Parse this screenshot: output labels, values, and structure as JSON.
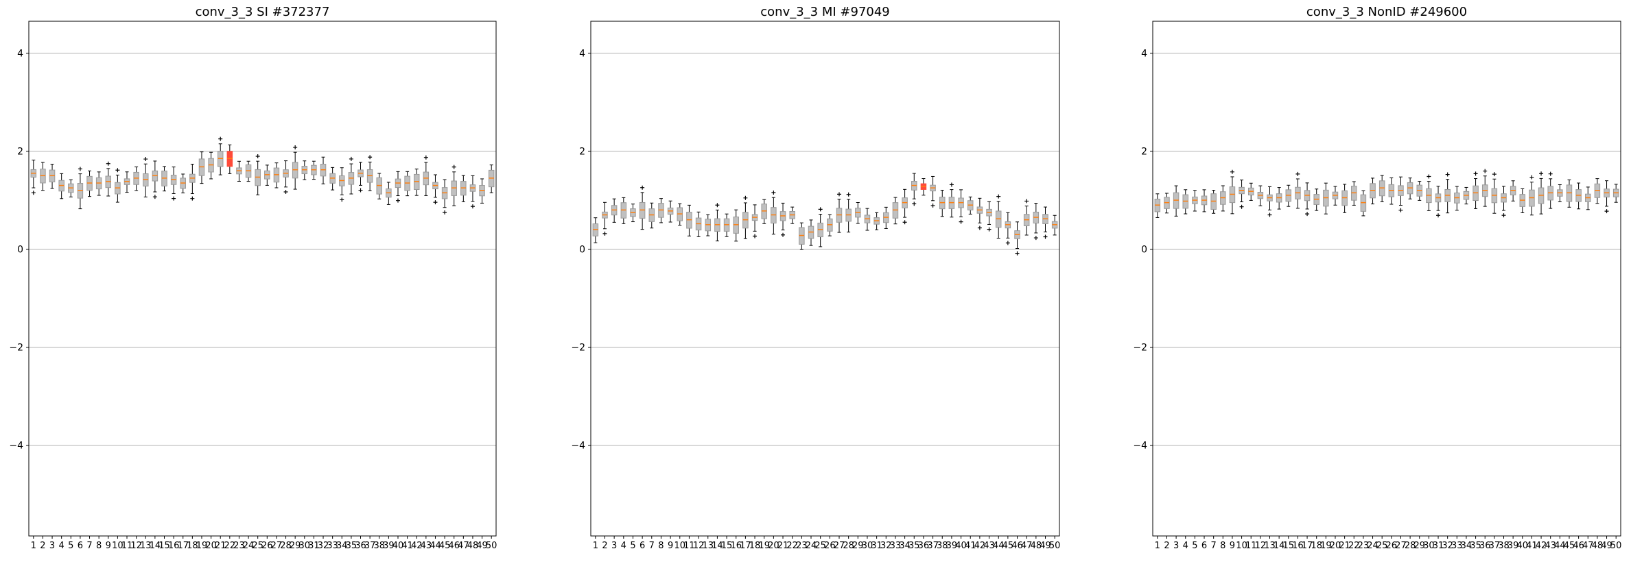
{
  "figure": {
    "colors": {
      "box_fill": "#c0c0c0",
      "box_edge": "#9a9a9a",
      "median": "#ff7f0e",
      "highlight": "#ff4a3a",
      "whisker": "#000000",
      "grid": "#b0b0b0"
    }
  },
  "chart_data": [
    {
      "type": "box",
      "title": "conv_3_3 SI #372377",
      "xlabel": "",
      "ylabel": "",
      "ylim": [
        -5.85,
        4.65
      ],
      "yticks": [
        4,
        2,
        0,
        -2,
        -4
      ],
      "ytick_labels": [
        "4",
        "2",
        "0",
        "−2",
        "−4"
      ],
      "grid": "horizontal",
      "categories": [
        "1",
        "2",
        "3",
        "4",
        "5",
        "6",
        "7",
        "8",
        "9",
        "10",
        "11",
        "12",
        "13",
        "14",
        "15",
        "16",
        "17",
        "18",
        "19",
        "20",
        "21",
        "22",
        "23",
        "24",
        "25",
        "26",
        "27",
        "28",
        "29",
        "30",
        "31",
        "32",
        "33",
        "34",
        "35",
        "36",
        "37",
        "38",
        "39",
        "40",
        "41",
        "42",
        "43",
        "44",
        "45",
        "46",
        "47",
        "48",
        "49",
        "50"
      ],
      "highlight": [
        22
      ],
      "medians": [
        1.55,
        1.5,
        1.5,
        1.3,
        1.25,
        1.2,
        1.35,
        1.35,
        1.38,
        1.25,
        1.38,
        1.45,
        1.42,
        1.5,
        1.45,
        1.42,
        1.35,
        1.45,
        1.68,
        1.72,
        1.85,
        1.85,
        1.6,
        1.6,
        1.47,
        1.52,
        1.52,
        1.55,
        1.62,
        1.62,
        1.62,
        1.62,
        1.45,
        1.4,
        1.45,
        1.55,
        1.5,
        1.3,
        1.15,
        1.35,
        1.35,
        1.38,
        1.45,
        1.3,
        1.15,
        1.25,
        1.25,
        1.25,
        1.2,
        1.45
      ]
    },
    {
      "type": "box",
      "title": "conv_3_3 MI #97049",
      "xlabel": "",
      "ylabel": "",
      "ylim": [
        -5.85,
        4.65
      ],
      "yticks": [
        4,
        2,
        0,
        -2,
        -4
      ],
      "ytick_labels": [
        "4",
        "2",
        "0",
        "−2",
        "−4"
      ],
      "grid": "horizontal",
      "categories": [
        "1",
        "2",
        "3",
        "4",
        "5",
        "6",
        "7",
        "8",
        "9",
        "10",
        "11",
        "12",
        "13",
        "14",
        "15",
        "16",
        "17",
        "18",
        "19",
        "20",
        "21",
        "22",
        "23",
        "24",
        "25",
        "26",
        "27",
        "28",
        "29",
        "30",
        "31",
        "32",
        "33",
        "34",
        "35",
        "36",
        "37",
        "38",
        "39",
        "40",
        "41",
        "42",
        "43",
        "44",
        "45",
        "46",
        "47",
        "48",
        "49",
        "50"
      ],
      "highlight": [
        36
      ],
      "medians": [
        0.4,
        0.7,
        0.8,
        0.8,
        0.75,
        0.8,
        0.7,
        0.8,
        0.78,
        0.72,
        0.6,
        0.52,
        0.5,
        0.5,
        0.5,
        0.5,
        0.6,
        0.65,
        0.78,
        0.7,
        0.68,
        0.7,
        0.28,
        0.35,
        0.4,
        0.5,
        0.7,
        0.7,
        0.75,
        0.62,
        0.58,
        0.65,
        0.8,
        0.95,
        1.3,
        1.28,
        1.25,
        0.95,
        0.95,
        0.95,
        0.9,
        0.8,
        0.75,
        0.62,
        0.5,
        0.3,
        0.6,
        0.65,
        0.62,
        0.5
      ]
    },
    {
      "type": "box",
      "title": "conv_3_3 NonID #249600",
      "xlabel": "",
      "ylabel": "",
      "ylim": [
        -5.85,
        4.65
      ],
      "yticks": [
        4,
        2,
        0,
        -2,
        -4
      ],
      "ytick_labels": [
        "4",
        "2",
        "0",
        "−2",
        "−4"
      ],
      "grid": "horizontal",
      "categories": [
        "1",
        "2",
        "3",
        "4",
        "5",
        "6",
        "7",
        "8",
        "9",
        "10",
        "11",
        "12",
        "13",
        "14",
        "15",
        "16",
        "17",
        "18",
        "19",
        "20",
        "21",
        "22",
        "23",
        "24",
        "25",
        "26",
        "27",
        "28",
        "29",
        "30",
        "31",
        "32",
        "33",
        "34",
        "35",
        "36",
        "37",
        "38",
        "39",
        "40",
        "41",
        "42",
        "43",
        "44",
        "45",
        "46",
        "47",
        "48",
        "49",
        "50"
      ],
      "highlight": [],
      "medians": [
        0.9,
        0.95,
        1.0,
        0.98,
        1.0,
        1.0,
        0.98,
        1.05,
        1.12,
        1.2,
        1.18,
        1.1,
        1.05,
        1.05,
        1.1,
        1.15,
        1.1,
        1.02,
        1.05,
        1.1,
        1.05,
        1.15,
        0.95,
        1.2,
        1.25,
        1.2,
        1.2,
        1.25,
        1.2,
        1.1,
        1.05,
        1.1,
        1.05,
        1.1,
        1.15,
        1.2,
        1.1,
        1.05,
        1.2,
        1.0,
        1.05,
        1.1,
        1.15,
        1.15,
        1.15,
        1.1,
        1.05,
        1.2,
        1.15,
        1.15
      ]
    }
  ]
}
